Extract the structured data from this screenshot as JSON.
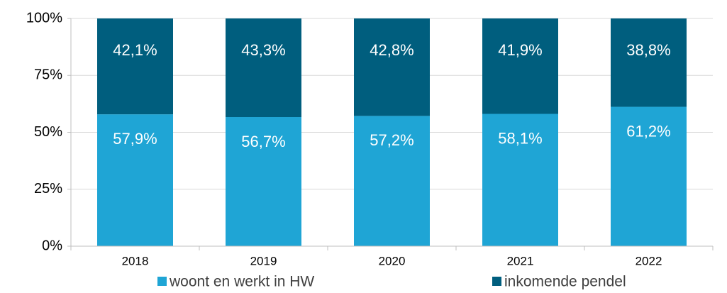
{
  "chart_data": {
    "type": "bar",
    "stacked": true,
    "categories": [
      "2018",
      "2019",
      "2020",
      "2021",
      "2022"
    ],
    "series": [
      {
        "name": "woont en werkt in HW",
        "color": "#1fa5d5",
        "values": [
          57.9,
          56.7,
          57.2,
          58.1,
          61.2
        ],
        "value_labels": [
          "57,9%",
          "56,7%",
          "57,2%",
          "58,1%",
          "61,2%"
        ]
      },
      {
        "name": "inkomende pendel",
        "color": "#005e7e",
        "values": [
          42.1,
          43.3,
          42.8,
          41.9,
          38.8
        ],
        "value_labels": [
          "42,1%",
          "43,3%",
          "42,8%",
          "41,9%",
          "38,8%"
        ]
      }
    ],
    "ylim": [
      0,
      100
    ],
    "yticks": [
      {
        "value": 0,
        "label": "0%"
      },
      {
        "value": 25,
        "label": "25%"
      },
      {
        "value": 50,
        "label": "50%"
      },
      {
        "value": 75,
        "label": "75%"
      },
      {
        "value": 100,
        "label": "100%"
      }
    ],
    "grid": true,
    "legend": "bottom"
  }
}
